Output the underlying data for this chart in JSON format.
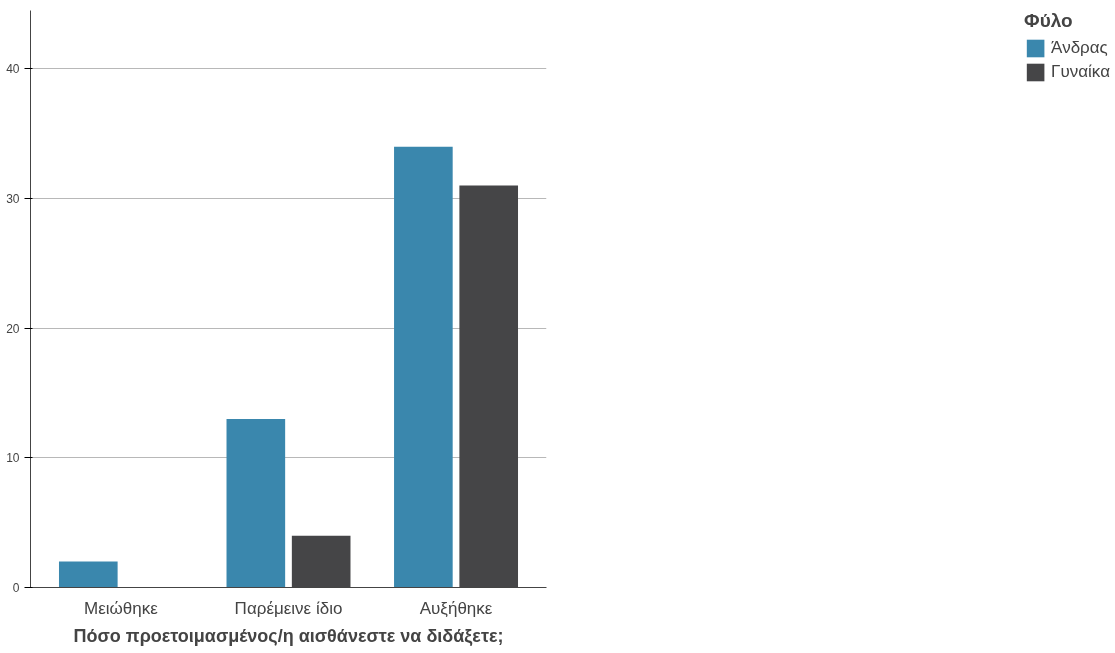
{
  "chart_data": {
    "type": "bar",
    "xlabel": "Πόσο προετοιμασμένος/η αισθάνεστε να διδάξετε;",
    "legend_title": "Φύλο",
    "categories": [
      "Μειώθηκε",
      "Παρέμεινε ίδιο",
      "Αυξήθηκε"
    ],
    "series": [
      {
        "name": "Άνδρας",
        "color": "#3a87ad",
        "values": [
          2,
          13,
          34
        ]
      },
      {
        "name": "Γυναίκα",
        "color": "#454547",
        "values": [
          0,
          4,
          31
        ]
      }
    ],
    "ylim": [
      0,
      44.5
    ],
    "yticks": [
      0,
      10,
      20,
      30,
      40
    ],
    "grid": "y",
    "legend": "top right"
  }
}
